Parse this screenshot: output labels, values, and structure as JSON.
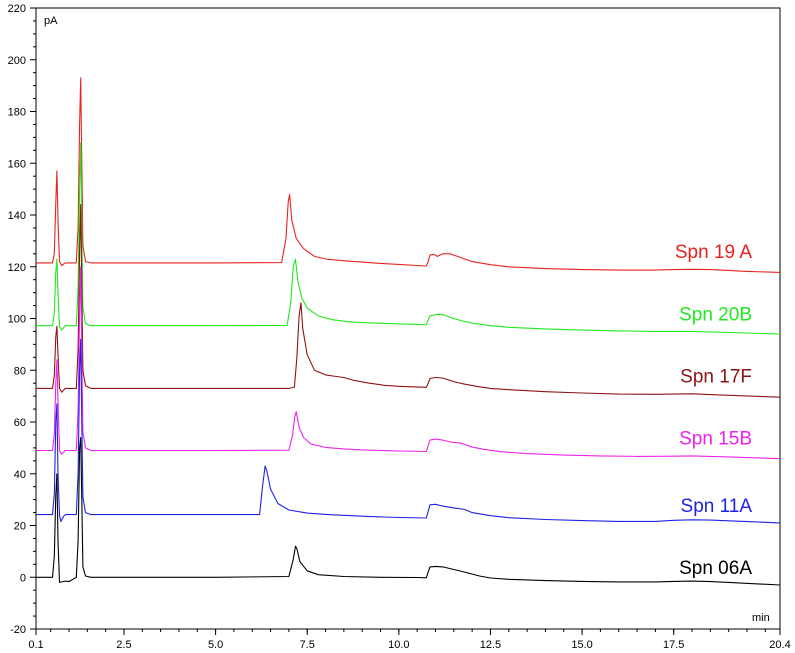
{
  "chart_data": {
    "type": "line",
    "y_unit": "pA",
    "x_unit": "min",
    "xlim": [
      0.1,
      20.4
    ],
    "ylim": [
      -20,
      220
    ],
    "x_ticks": [
      0.1,
      2.5,
      5.0,
      7.5,
      10.0,
      12.5,
      15.0,
      17.5,
      20.4
    ],
    "x_tick_labels": [
      "0.1",
      "2.5",
      "5.0",
      "7.5",
      "10.0",
      "12.5",
      "15.0",
      "17.5",
      "20.4"
    ],
    "y_ticks": [
      -20,
      0,
      20,
      40,
      60,
      80,
      100,
      120,
      140,
      160,
      180,
      200,
      220
    ],
    "y_tick_labels": [
      "-20",
      "0",
      "20",
      "40",
      "60",
      "80",
      "100",
      "120",
      "140",
      "160",
      "180",
      "200",
      "220"
    ],
    "grid": false,
    "series": [
      {
        "name": "Spn 19 A",
        "color": "#e8231e",
        "label_y": 126,
        "points": [
          [
            0.1,
            121.5
          ],
          [
            0.55,
            121.5
          ],
          [
            0.6,
            125
          ],
          [
            0.64,
            145
          ],
          [
            0.67,
            157
          ],
          [
            0.7,
            138
          ],
          [
            0.74,
            122
          ],
          [
            0.8,
            120.5
          ],
          [
            0.9,
            121.5
          ],
          [
            1.2,
            121.5
          ],
          [
            1.25,
            135
          ],
          [
            1.29,
            175
          ],
          [
            1.32,
            193
          ],
          [
            1.35,
            160
          ],
          [
            1.38,
            128
          ],
          [
            1.45,
            122
          ],
          [
            1.6,
            121.5
          ],
          [
            3,
            121.5
          ],
          [
            5,
            121.5
          ],
          [
            6.8,
            121.6
          ],
          [
            6.92,
            131
          ],
          [
            6.98,
            145
          ],
          [
            7.02,
            148
          ],
          [
            7.08,
            138
          ],
          [
            7.2,
            131
          ],
          [
            7.4,
            127
          ],
          [
            7.7,
            124
          ],
          [
            8,
            123
          ],
          [
            8.5,
            122.3
          ],
          [
            9,
            121.8
          ],
          [
            9.5,
            121.3
          ],
          [
            10,
            120.9
          ],
          [
            10.5,
            120.5
          ],
          [
            10.75,
            120.3
          ],
          [
            10.8,
            122
          ],
          [
            10.85,
            124.5
          ],
          [
            10.95,
            124.8
          ],
          [
            11.05,
            124
          ],
          [
            11.2,
            125
          ],
          [
            11.4,
            125
          ],
          [
            11.6,
            124
          ],
          [
            11.8,
            123
          ],
          [
            12,
            122
          ],
          [
            12.5,
            120.8
          ],
          [
            13,
            120
          ],
          [
            14,
            119.3
          ],
          [
            15,
            118.9
          ],
          [
            16,
            118.7
          ],
          [
            17,
            118.7
          ],
          [
            17.5,
            118.9
          ],
          [
            18,
            119
          ],
          [
            18.5,
            118.9
          ],
          [
            19,
            118.6
          ],
          [
            19.5,
            118.2
          ],
          [
            20.4,
            117.8
          ]
        ]
      },
      {
        "name": "Spn 20B",
        "color": "#22e81e",
        "label_y": 102,
        "points": [
          [
            0.1,
            97.2
          ],
          [
            0.55,
            97.2
          ],
          [
            0.6,
            102
          ],
          [
            0.64,
            118
          ],
          [
            0.67,
            123
          ],
          [
            0.7,
            110
          ],
          [
            0.74,
            97
          ],
          [
            0.8,
            95.5
          ],
          [
            0.9,
            97.2
          ],
          [
            1.2,
            97.2
          ],
          [
            1.25,
            112
          ],
          [
            1.29,
            150
          ],
          [
            1.32,
            168
          ],
          [
            1.35,
            135
          ],
          [
            1.38,
            104
          ],
          [
            1.45,
            98
          ],
          [
            1.6,
            97.2
          ],
          [
            3,
            97.2
          ],
          [
            5,
            97.2
          ],
          [
            6.95,
            97.3
          ],
          [
            7.05,
            106
          ],
          [
            7.12,
            120
          ],
          [
            7.18,
            123
          ],
          [
            7.25,
            114
          ],
          [
            7.35,
            108
          ],
          [
            7.5,
            104
          ],
          [
            7.8,
            101
          ],
          [
            8.2,
            99.5
          ],
          [
            8.7,
            98.7
          ],
          [
            9.2,
            98.3
          ],
          [
            10,
            97.9
          ],
          [
            10.75,
            97.6
          ],
          [
            10.8,
            99.5
          ],
          [
            10.85,
            101
          ],
          [
            11.0,
            101.5
          ],
          [
            11.2,
            101.5
          ],
          [
            11.5,
            100
          ],
          [
            11.8,
            98.8
          ],
          [
            12.1,
            98
          ],
          [
            12.5,
            97.2
          ],
          [
            13,
            96.6
          ],
          [
            14,
            96
          ],
          [
            15,
            95.5
          ],
          [
            16,
            95.2
          ],
          [
            17,
            95
          ],
          [
            18,
            95
          ],
          [
            19,
            94.6
          ],
          [
            20.4,
            94
          ]
        ]
      },
      {
        "name": "Spn 17F",
        "color": "#8b1414",
        "label_y": 78,
        "points": [
          [
            0.1,
            73
          ],
          [
            0.55,
            73
          ],
          [
            0.6,
            78
          ],
          [
            0.64,
            93
          ],
          [
            0.67,
            97
          ],
          [
            0.7,
            86
          ],
          [
            0.74,
            73
          ],
          [
            0.8,
            71.5
          ],
          [
            0.9,
            73
          ],
          [
            1.2,
            73
          ],
          [
            1.25,
            88
          ],
          [
            1.29,
            126
          ],
          [
            1.32,
            144
          ],
          [
            1.35,
            111
          ],
          [
            1.38,
            80
          ],
          [
            1.45,
            74
          ],
          [
            1.6,
            73
          ],
          [
            3,
            73
          ],
          [
            5,
            73
          ],
          [
            7,
            73
          ],
          [
            7.15,
            73.5
          ],
          [
            7.22,
            85
          ],
          [
            7.28,
            101
          ],
          [
            7.33,
            106
          ],
          [
            7.38,
            96
          ],
          [
            7.5,
            86
          ],
          [
            7.7,
            80
          ],
          [
            8,
            78.2
          ],
          [
            8.3,
            77.6
          ],
          [
            8.5,
            77.2
          ],
          [
            8.8,
            76
          ],
          [
            9.2,
            75
          ],
          [
            9.6,
            74.2
          ],
          [
            10,
            73.8
          ],
          [
            10.75,
            73.4
          ],
          [
            10.8,
            75
          ],
          [
            10.85,
            76.8
          ],
          [
            11.0,
            77.2
          ],
          [
            11.2,
            77
          ],
          [
            11.5,
            75.6
          ],
          [
            11.8,
            74.6
          ],
          [
            12.2,
            73.6
          ],
          [
            12.5,
            73
          ],
          [
            13,
            72.5
          ],
          [
            14,
            71.7
          ],
          [
            15,
            71.2
          ],
          [
            16,
            70.8
          ],
          [
            17,
            70.7
          ],
          [
            18,
            70.9
          ],
          [
            19,
            70.3
          ],
          [
            20.4,
            69.6
          ]
        ]
      },
      {
        "name": "Spn 15B",
        "color": "#ee22ee",
        "label_y": 54,
        "points": [
          [
            0.1,
            49
          ],
          [
            0.55,
            49
          ],
          [
            0.6,
            55
          ],
          [
            0.64,
            75
          ],
          [
            0.67,
            84
          ],
          [
            0.7,
            68
          ],
          [
            0.74,
            49
          ],
          [
            0.8,
            47.5
          ],
          [
            0.9,
            49
          ],
          [
            1.2,
            49
          ],
          [
            1.25,
            64
          ],
          [
            1.29,
            102
          ],
          [
            1.32,
            120
          ],
          [
            1.35,
            87
          ],
          [
            1.38,
            56
          ],
          [
            1.45,
            50
          ],
          [
            1.6,
            49
          ],
          [
            3,
            49
          ],
          [
            5,
            49
          ],
          [
            7,
            49.1
          ],
          [
            7.1,
            55
          ],
          [
            7.16,
            62
          ],
          [
            7.2,
            64
          ],
          [
            7.28,
            58
          ],
          [
            7.4,
            54
          ],
          [
            7.6,
            51.5
          ],
          [
            8,
            50.2
          ],
          [
            8.5,
            49.6
          ],
          [
            9,
            49.2
          ],
          [
            10,
            48.8
          ],
          [
            10.75,
            48.6
          ],
          [
            10.8,
            51
          ],
          [
            10.85,
            53
          ],
          [
            11.0,
            53.4
          ],
          [
            11.2,
            53
          ],
          [
            11.4,
            52.3
          ],
          [
            11.7,
            51.8
          ],
          [
            12,
            50.3
          ],
          [
            12.3,
            49.5
          ],
          [
            12.8,
            48.5
          ],
          [
            13.5,
            47.8
          ],
          [
            14.5,
            47.2
          ],
          [
            15.5,
            46.9
          ],
          [
            16.5,
            46.7
          ],
          [
            17.5,
            46.8
          ],
          [
            18,
            46.9
          ],
          [
            19,
            46.5
          ],
          [
            20.4,
            45.8
          ]
        ]
      },
      {
        "name": "Spn 11A",
        "color": "#1e22e8",
        "label_y": 28,
        "points": [
          [
            0.1,
            24.2
          ],
          [
            0.55,
            24.2
          ],
          [
            0.6,
            32
          ],
          [
            0.64,
            60
          ],
          [
            0.67,
            67
          ],
          [
            0.7,
            40
          ],
          [
            0.74,
            24
          ],
          [
            0.78,
            21.5
          ],
          [
            0.85,
            23.5
          ],
          [
            0.9,
            24.2
          ],
          [
            1.2,
            24.2
          ],
          [
            1.25,
            40
          ],
          [
            1.29,
            80
          ],
          [
            1.32,
            92
          ],
          [
            1.35,
            60
          ],
          [
            1.38,
            31
          ],
          [
            1.45,
            25
          ],
          [
            1.6,
            24.2
          ],
          [
            3,
            24.2
          ],
          [
            5,
            24.2
          ],
          [
            6.2,
            24.2
          ],
          [
            6.28,
            35
          ],
          [
            6.35,
            43
          ],
          [
            6.4,
            41
          ],
          [
            6.5,
            34
          ],
          [
            6.7,
            28.5
          ],
          [
            7,
            26
          ],
          [
            7.5,
            24.8
          ],
          [
            8,
            24.3
          ],
          [
            9,
            23.6
          ],
          [
            10,
            23.1
          ],
          [
            10.75,
            22.9
          ],
          [
            10.8,
            25.5
          ],
          [
            10.85,
            28
          ],
          [
            11.0,
            28.2
          ],
          [
            11.2,
            27.5
          ],
          [
            11.5,
            26.8
          ],
          [
            11.8,
            26.2
          ],
          [
            12,
            25
          ],
          [
            12.5,
            23.8
          ],
          [
            13,
            23
          ],
          [
            14,
            22.3
          ],
          [
            15,
            21.9
          ],
          [
            16,
            21.6
          ],
          [
            17,
            21.6
          ],
          [
            17.5,
            22
          ],
          [
            18,
            22.2
          ],
          [
            18.5,
            22.1
          ],
          [
            19,
            21.8
          ],
          [
            20.4,
            21
          ]
        ]
      },
      {
        "name": "Spn 06A",
        "color": "#000000",
        "label_y": 4,
        "points": [
          [
            0.1,
            0
          ],
          [
            0.55,
            0
          ],
          [
            0.6,
            8
          ],
          [
            0.64,
            32
          ],
          [
            0.67,
            40
          ],
          [
            0.7,
            14
          ],
          [
            0.74,
            -2
          ],
          [
            0.8,
            -1.8
          ],
          [
            0.9,
            -1.5
          ],
          [
            1.0,
            -1.7
          ],
          [
            1.2,
            0
          ],
          [
            1.25,
            14
          ],
          [
            1.29,
            50
          ],
          [
            1.32,
            54
          ],
          [
            1.35,
            30
          ],
          [
            1.38,
            4
          ],
          [
            1.45,
            0.5
          ],
          [
            1.6,
            0
          ],
          [
            3,
            0
          ],
          [
            5,
            0
          ],
          [
            7,
            0.3
          ],
          [
            7.12,
            7
          ],
          [
            7.18,
            12
          ],
          [
            7.22,
            11
          ],
          [
            7.3,
            6
          ],
          [
            7.5,
            2.5
          ],
          [
            7.8,
            1
          ],
          [
            8.5,
            0.3
          ],
          [
            9.5,
            0
          ],
          [
            10.5,
            -0.1
          ],
          [
            10.75,
            -0.2
          ],
          [
            10.8,
            2
          ],
          [
            10.85,
            4
          ],
          [
            11.0,
            4.2
          ],
          [
            11.2,
            4
          ],
          [
            11.5,
            3
          ],
          [
            11.8,
            2
          ],
          [
            12.2,
            0.5
          ],
          [
            12.5,
            -0.3
          ],
          [
            13,
            -0.8
          ],
          [
            14,
            -1.3
          ],
          [
            15,
            -1.6
          ],
          [
            16,
            -1.8
          ],
          [
            17,
            -1.8
          ],
          [
            17.5,
            -1.6
          ],
          [
            18,
            -1.5
          ],
          [
            18.5,
            -1.7
          ],
          [
            19,
            -2
          ],
          [
            20.4,
            -3
          ]
        ]
      }
    ]
  }
}
